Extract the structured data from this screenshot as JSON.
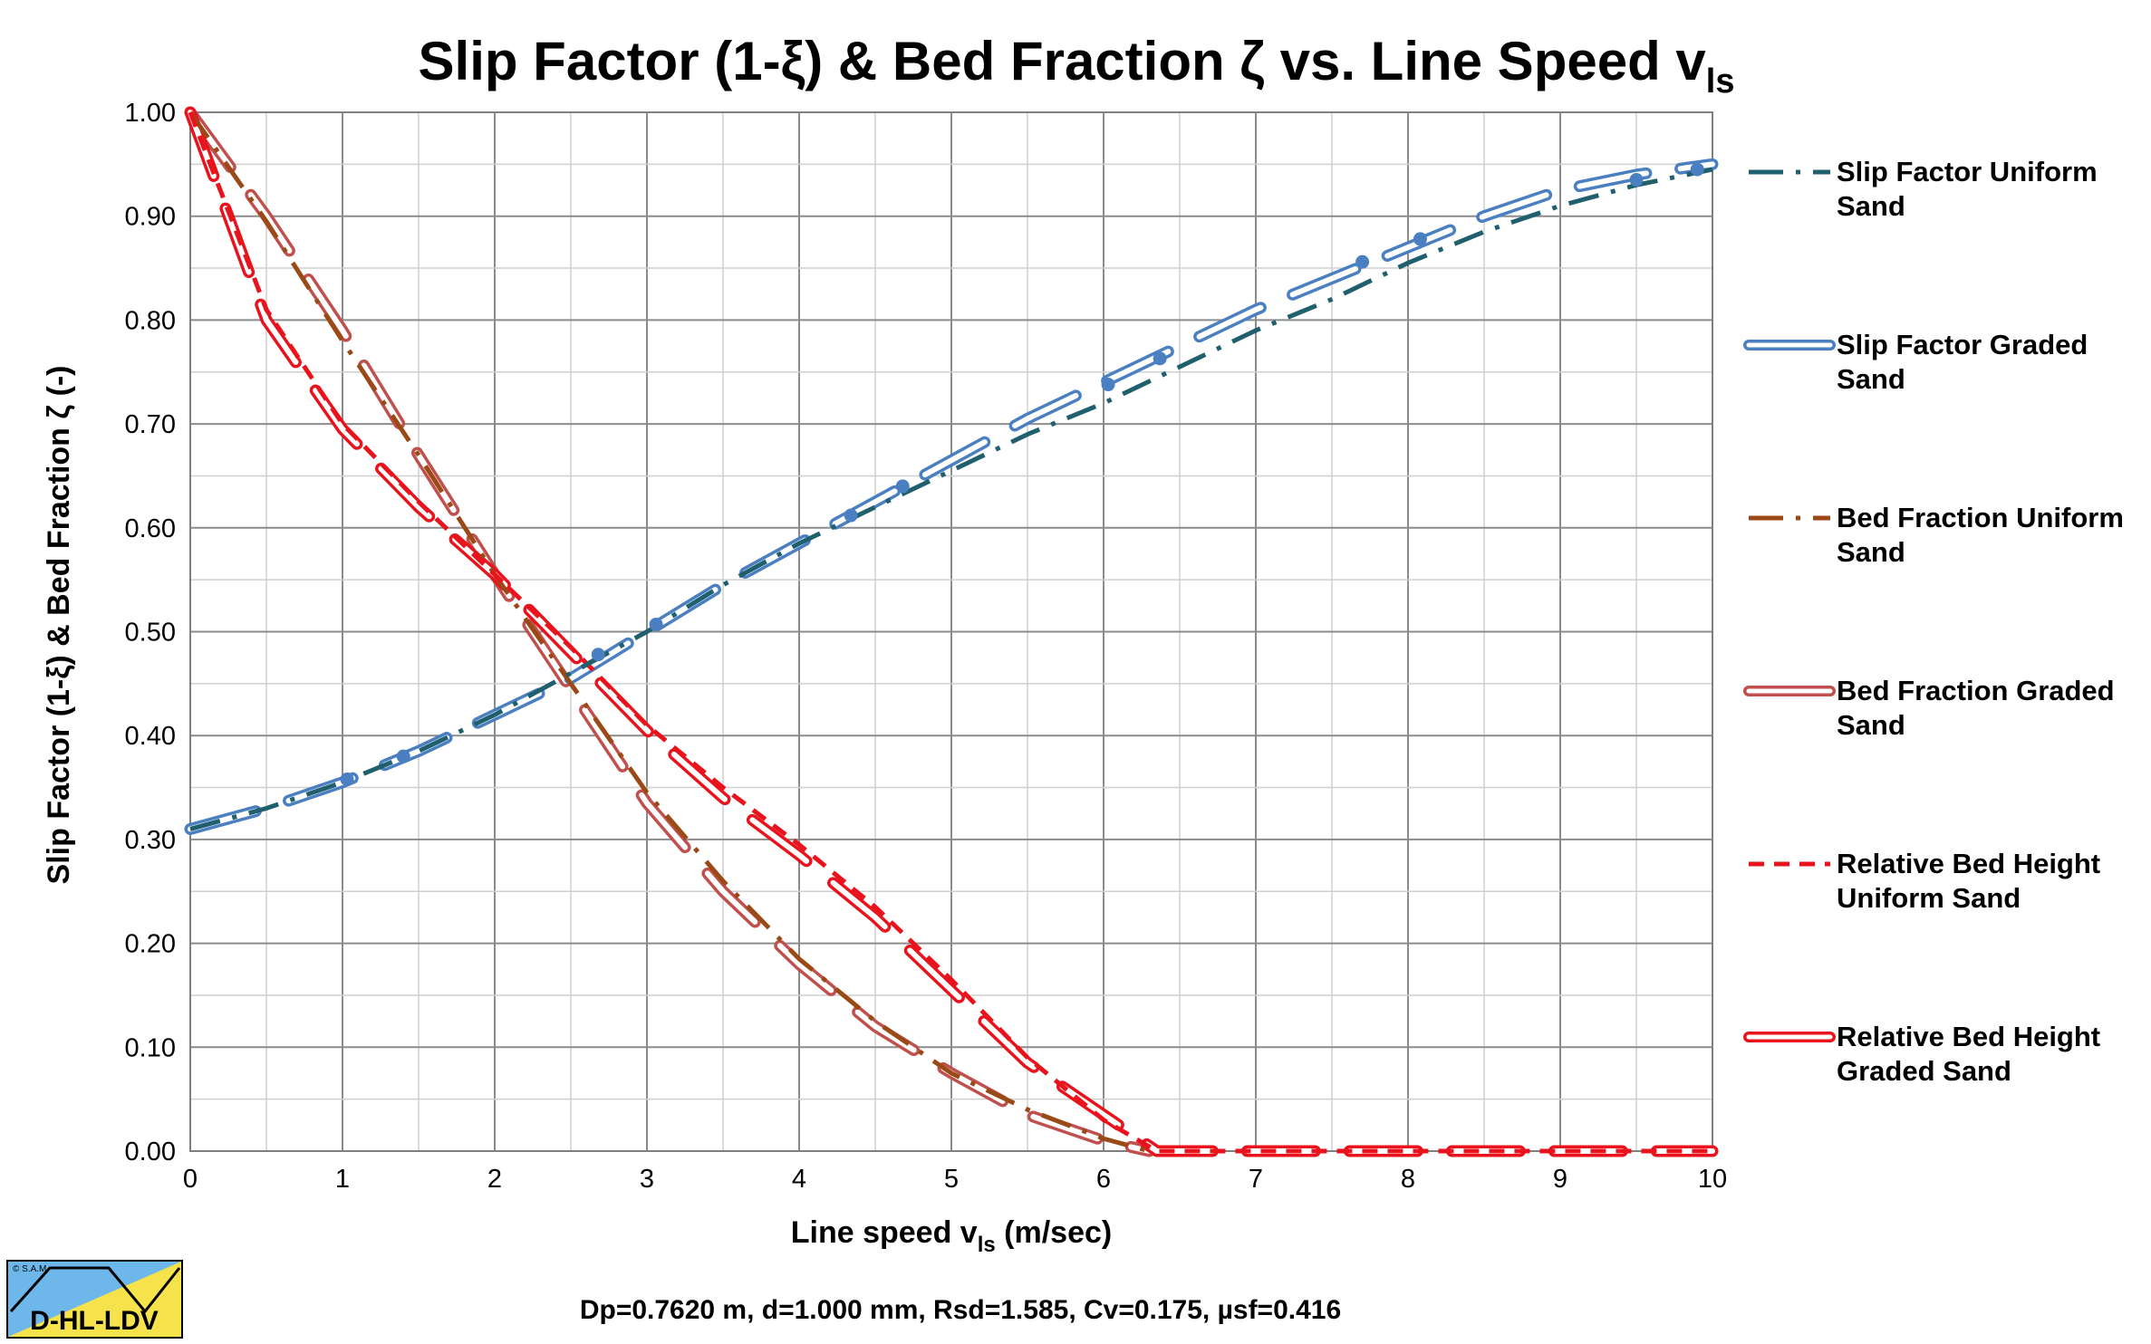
{
  "chart_data": {
    "type": "line",
    "title_main": "Slip Factor (1-ξ) & Bed Fraction ζ vs. Line Speed v",
    "title_sub": "ls",
    "xlabel_main": "Line speed v",
    "xlabel_sub": "ls",
    "xlabel_unit": " (m/sec)",
    "ylabel": "Slip Factor (1-ξ) & Bed Fraction ζ (-)",
    "xlim": [
      0,
      10
    ],
    "ylim": [
      0,
      1
    ],
    "grid": true,
    "legend_position": "right",
    "x_ticks": [
      "0",
      "1",
      "2",
      "3",
      "4",
      "5",
      "6",
      "7",
      "8",
      "9",
      "10"
    ],
    "y_ticks": [
      "0.00",
      "0.10",
      "0.20",
      "0.30",
      "0.40",
      "0.50",
      "0.60",
      "0.70",
      "0.80",
      "0.90",
      "1.00"
    ],
    "series": [
      {
        "name": "Slip Factor Uniform Sand",
        "legend_lines": [
          "Slip Factor Uniform",
          "Sand"
        ],
        "style": "dashdot",
        "color": "#1f5f6e",
        "x": [
          0,
          0.5,
          1.0,
          1.5,
          2.0,
          2.5,
          3.0,
          3.5,
          4.0,
          4.5,
          5.0,
          5.5,
          6.0,
          6.5,
          7.0,
          7.5,
          8.0,
          8.5,
          9.0,
          9.5,
          10.0
        ],
        "values": [
          0.31,
          0.33,
          0.355,
          0.385,
          0.42,
          0.46,
          0.5,
          0.545,
          0.585,
          0.62,
          0.655,
          0.69,
          0.72,
          0.755,
          0.79,
          0.82,
          0.855,
          0.885,
          0.91,
          0.93,
          0.945
        ]
      },
      {
        "name": "Slip Factor Graded Sand",
        "legend_lines": [
          "Slip Factor Graded",
          "Sand"
        ],
        "style": "hollow",
        "color": "#4a7fc1",
        "x": [
          0,
          0.5,
          1.0,
          1.5,
          2.0,
          2.5,
          3.0,
          3.5,
          4.0,
          4.5,
          5.0,
          5.5,
          6.0,
          6.5,
          7.0,
          7.5,
          8.0,
          8.5,
          9.0,
          9.5,
          10.0
        ],
        "values": [
          0.31,
          0.33,
          0.355,
          0.385,
          0.42,
          0.455,
          0.5,
          0.545,
          0.585,
          0.625,
          0.665,
          0.705,
          0.74,
          0.775,
          0.81,
          0.84,
          0.87,
          0.9,
          0.925,
          0.94,
          0.95
        ]
      },
      {
        "name": "Slip Factor Uniform Sand (points)",
        "style": "points",
        "color": "#4a7fc1",
        "x": [
          1.03,
          1.4,
          2.68,
          3.06,
          4.34,
          4.68,
          6.03,
          6.37,
          7.7,
          8.08,
          9.5,
          9.9
        ],
        "values": [
          0.358,
          0.38,
          0.478,
          0.507,
          0.612,
          0.64,
          0.738,
          0.763,
          0.856,
          0.878,
          0.935,
          0.945
        ]
      },
      {
        "name": "Bed Fraction Uniform Sand",
        "legend_lines": [
          "Bed Fraction Uniform",
          "Sand"
        ],
        "style": "dashdot",
        "color": "#9a4a16",
        "x": [
          0,
          0.5,
          1.0,
          1.5,
          2.0,
          2.5,
          3.0,
          3.5,
          4.0,
          4.5,
          5.0,
          5.5,
          6.0,
          6.3
        ],
        "values": [
          1.0,
          0.895,
          0.78,
          0.67,
          0.555,
          0.45,
          0.345,
          0.26,
          0.185,
          0.125,
          0.075,
          0.04,
          0.012,
          0.0
        ]
      },
      {
        "name": "Bed Fraction Graded Sand",
        "legend_lines": [
          "Bed Fraction Graded",
          "Sand"
        ],
        "style": "hollow",
        "color": "#c0504d",
        "x": [
          0,
          0.5,
          1.0,
          1.5,
          2.0,
          2.5,
          3.0,
          3.5,
          4.0,
          4.5,
          5.0,
          5.5,
          6.0,
          6.3
        ],
        "values": [
          1.0,
          0.9,
          0.79,
          0.67,
          0.555,
          0.445,
          0.335,
          0.25,
          0.18,
          0.12,
          0.075,
          0.035,
          0.01,
          0.0
        ]
      },
      {
        "name": "Relative Bed Height Uniform Sand",
        "legend_lines": [
          "Relative Bed Height",
          "Uniform Sand"
        ],
        "style": "dash",
        "color": "#e8131d",
        "x": [
          0,
          0.5,
          1.0,
          1.5,
          2.0,
          2.5,
          3.0,
          3.5,
          4.0,
          4.5,
          5.0,
          5.5,
          6.0,
          6.35,
          10.0
        ],
        "values": [
          1.0,
          0.81,
          0.7,
          0.625,
          0.555,
          0.485,
          0.41,
          0.35,
          0.295,
          0.235,
          0.165,
          0.09,
          0.03,
          0.0,
          0.0
        ]
      },
      {
        "name": "Relative Bed Height Graded Sand",
        "legend_lines": [
          "Relative Bed Height",
          "Graded Sand"
        ],
        "style": "hollow",
        "color": "#e8131d",
        "x": [
          0,
          0.5,
          1.0,
          1.5,
          2.0,
          2.5,
          3.0,
          3.5,
          4.0,
          4.5,
          5.0,
          5.5,
          6.0,
          6.35,
          10.0
        ],
        "values": [
          1.0,
          0.8,
          0.695,
          0.62,
          0.555,
          0.48,
          0.405,
          0.34,
          0.285,
          0.225,
          0.155,
          0.085,
          0.035,
          0.0,
          0.0
        ]
      }
    ],
    "caption": "Dp=0.7620 m, d=1.000 mm, Rsd=1.585, Cv=0.175, µsf=0.416",
    "logo": {
      "label": "D-HL-LDV",
      "copyright": "© S.A.M."
    }
  }
}
